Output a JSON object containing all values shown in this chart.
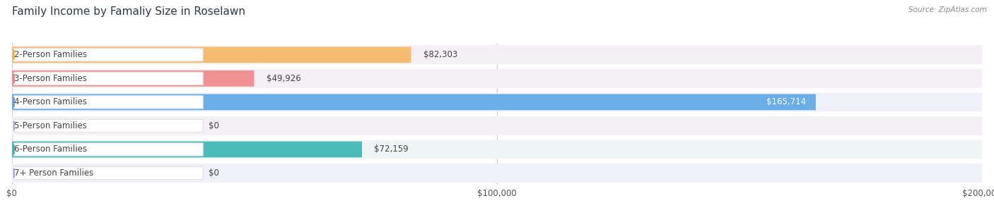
{
  "title": "Family Income by Famaliy Size in Roselawn",
  "source": "Source: ZipAtlas.com",
  "categories": [
    "2-Person Families",
    "3-Person Families",
    "4-Person Families",
    "5-Person Families",
    "6-Person Families",
    "7+ Person Families"
  ],
  "values": [
    82303,
    49926,
    165714,
    0,
    72159,
    0
  ],
  "bar_colors": [
    "#f5bc72",
    "#f09090",
    "#6aaee8",
    "#c9a8d8",
    "#4bbcb8",
    "#a8b8e8"
  ],
  "bg_colors": [
    "#f5f0f5",
    "#f5f0f5",
    "#f0f0f8",
    "#f5f0f5",
    "#f0f5f5",
    "#f0f0f8"
  ],
  "circle_colors": [
    "#f5a030",
    "#e87070",
    "#4a90d8",
    "#b090c8",
    "#30a8a0",
    "#9090d0"
  ],
  "value_inside": [
    false,
    false,
    true,
    false,
    false,
    false
  ],
  "xlim": [
    0,
    200000
  ],
  "xticks": [
    0,
    100000,
    200000
  ],
  "xtick_labels": [
    "$0",
    "$100,000",
    "$200,000"
  ],
  "title_fontsize": 11,
  "label_fontsize": 8.5,
  "value_fontsize": 8.5,
  "background_color": "#ffffff"
}
